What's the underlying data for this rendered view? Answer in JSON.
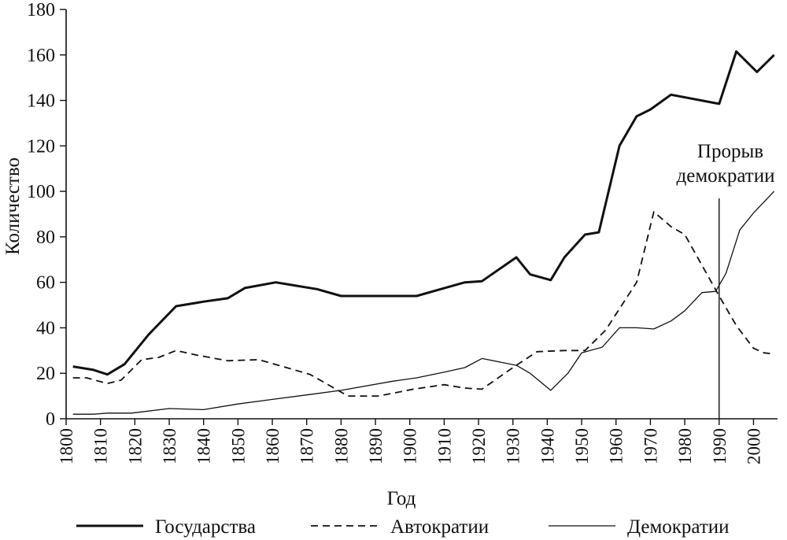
{
  "chart_data": {
    "type": "line",
    "xlabel": "Год",
    "ylabel": "Количество",
    "xlim": [
      1800,
      2007
    ],
    "ylim": [
      0,
      180
    ],
    "x_ticks": [
      1800,
      1810,
      1820,
      1830,
      1840,
      1850,
      1860,
      1870,
      1880,
      1890,
      1900,
      1910,
      1920,
      1930,
      1940,
      1950,
      1960,
      1970,
      1980,
      1990,
      2000
    ],
    "y_ticks": [
      0,
      20,
      40,
      60,
      80,
      100,
      120,
      140,
      160,
      180
    ],
    "grid": false,
    "legend_placement": "bottom",
    "annotation": {
      "line1": "Прорыв",
      "line2": "демократии",
      "x": 1990
    },
    "series": [
      {
        "name": "Государства",
        "style": "solid-thick",
        "color": "#111111",
        "points": [
          [
            1802,
            23
          ],
          [
            1808,
            21.5
          ],
          [
            1812,
            19.5
          ],
          [
            1817,
            24
          ],
          [
            1824,
            37
          ],
          [
            1832,
            49.5
          ],
          [
            1840,
            51.5
          ],
          [
            1847,
            53
          ],
          [
            1852,
            57.5
          ],
          [
            1861,
            60
          ],
          [
            1867,
            58.5
          ],
          [
            1873,
            57
          ],
          [
            1880,
            54
          ],
          [
            1890,
            54
          ],
          [
            1902,
            54
          ],
          [
            1909,
            57
          ],
          [
            1916,
            60
          ],
          [
            1921,
            60.5
          ],
          [
            1931,
            71
          ],
          [
            1935,
            63.5
          ],
          [
            1941,
            61
          ],
          [
            1945,
            71
          ],
          [
            1951,
            81
          ],
          [
            1955,
            82
          ],
          [
            1961,
            120
          ],
          [
            1966,
            133
          ],
          [
            1970,
            136
          ],
          [
            1976,
            142.5
          ],
          [
            1990,
            138.5
          ],
          [
            1995,
            161.5
          ],
          [
            2001,
            152.5
          ],
          [
            2006,
            160
          ]
        ]
      },
      {
        "name": "Автократии",
        "style": "dashed",
        "color": "#111111",
        "points": [
          [
            1802,
            18
          ],
          [
            1806,
            18
          ],
          [
            1812,
            15.5
          ],
          [
            1816,
            17
          ],
          [
            1822,
            26
          ],
          [
            1827,
            27
          ],
          [
            1832,
            30
          ],
          [
            1838,
            28
          ],
          [
            1847,
            25.5
          ],
          [
            1856,
            26
          ],
          [
            1863,
            23
          ],
          [
            1871,
            19.5
          ],
          [
            1882,
            10
          ],
          [
            1891,
            10
          ],
          [
            1901,
            13
          ],
          [
            1910,
            15
          ],
          [
            1916,
            13.5
          ],
          [
            1921,
            13
          ],
          [
            1930,
            22.5
          ],
          [
            1937,
            29.5
          ],
          [
            1945,
            30
          ],
          [
            1951,
            30
          ],
          [
            1957,
            39
          ],
          [
            1966,
            60
          ],
          [
            1971,
            91
          ],
          [
            1976,
            84.5
          ],
          [
            1980,
            81
          ],
          [
            1990,
            54
          ],
          [
            1995,
            41
          ],
          [
            2000,
            31
          ],
          [
            2003,
            29
          ],
          [
            2006,
            28.5
          ]
        ]
      },
      {
        "name": "Демократии",
        "style": "solid-thin",
        "color": "#111111",
        "points": [
          [
            1802,
            2
          ],
          [
            1808,
            2
          ],
          [
            1812,
            2.5
          ],
          [
            1819,
            2.5
          ],
          [
            1830,
            4.5
          ],
          [
            1840,
            4
          ],
          [
            1850,
            6.5
          ],
          [
            1860,
            8.5
          ],
          [
            1870,
            10.5
          ],
          [
            1880,
            12.5
          ],
          [
            1895,
            16.5
          ],
          [
            1902,
            18
          ],
          [
            1910,
            20.5
          ],
          [
            1916,
            22.5
          ],
          [
            1921,
            26.5
          ],
          [
            1931,
            23.5
          ],
          [
            1935,
            20
          ],
          [
            1941,
            12.5
          ],
          [
            1946,
            20
          ],
          [
            1950,
            29
          ],
          [
            1956,
            31.5
          ],
          [
            1961,
            40
          ],
          [
            1966,
            40
          ],
          [
            1971,
            39.5
          ],
          [
            1976,
            43
          ],
          [
            1980,
            47.5
          ],
          [
            1985,
            55.5
          ],
          [
            1989,
            56
          ],
          [
            1992,
            64
          ],
          [
            1996,
            83
          ],
          [
            2000,
            90.5
          ],
          [
            2006,
            100
          ]
        ]
      }
    ]
  }
}
